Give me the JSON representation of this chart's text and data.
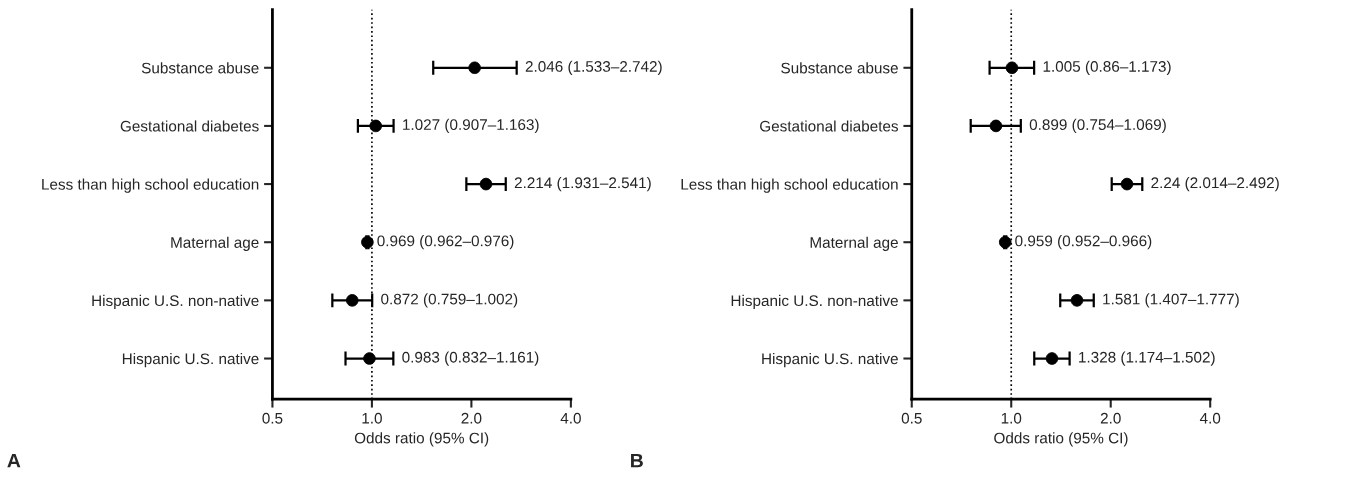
{
  "chart_data": [
    {
      "type": "scatter",
      "orientation": "horizontal",
      "log": "x",
      "xlabel": "Odds ratio (95% CI)",
      "annotations": [
        "A"
      ],
      "categories": [
        "Substance abuse",
        "Gestational diabetes",
        "Less than high school education",
        "Maternal age",
        "Hispanic U.S. non-native",
        "Hispanic U.S. native"
      ],
      "series": [
        {
          "color": "#000000",
          "values": [
            2.046,
            1.027,
            2.214,
            0.969,
            0.872,
            0.983
          ],
          "errors": [
            [
              1.533,
              2.742
            ],
            [
              0.907,
              1.163
            ],
            [
              1.931,
              2.541
            ],
            [
              0.962,
              0.976
            ],
            [
              0.759,
              1.002
            ],
            [
              0.832,
              1.161
            ]
          ],
          "value_labels": [
            "2.046 (1.533–2.742)",
            "1.027 (0.907–1.163)",
            "2.214 (1.931–2.541)",
            "0.969 (0.962–0.976)",
            "0.872 (0.759–1.002)",
            "0.983 (0.832–1.161)"
          ]
        }
      ],
      "xlim": [
        0.5,
        4.0
      ],
      "xticks": [
        0.5,
        {
          "value": 1.0,
          "label": "1.0"
        },
        {
          "value": 2.0,
          "label": "2.0"
        },
        {
          "value": 4.0,
          "label": "4.0"
        }
      ],
      "ref_lines": [
        {
          "axis": "x",
          "value": 1.0,
          "line_style": "dotted",
          "color": "#000000"
        }
      ],
      "marker": "circle",
      "grid": false,
      "legend": false
    },
    {
      "type": "scatter",
      "orientation": "horizontal",
      "log": "x",
      "xlabel": "Odds ratio (95% CI)",
      "annotations": [
        "B"
      ],
      "categories": [
        "Substance abuse",
        "Gestational diabetes",
        "Less than high school education",
        "Maternal age",
        "Hispanic U.S. non-native",
        "Hispanic U.S. native"
      ],
      "series": [
        {
          "color": "#000000",
          "values": [
            1.005,
            0.899,
            2.24,
            0.959,
            1.581,
            1.328
          ],
          "errors": [
            [
              0.86,
              1.173
            ],
            [
              0.754,
              1.069
            ],
            [
              2.014,
              2.492
            ],
            [
              0.952,
              0.966
            ],
            [
              1.407,
              1.777
            ],
            [
              1.174,
              1.502
            ]
          ],
          "value_labels": [
            "1.005 (0.86–1.173)",
            "0.899 (0.754–1.069)",
            "2.24 (2.014–2.492)",
            "0.959 (0.952–0.966)",
            "1.581 (1.407–1.777)",
            "1.328 (1.174–1.502)"
          ]
        }
      ],
      "xlim": [
        0.5,
        4.0
      ],
      "xticks": [
        0.5,
        {
          "value": 1.0,
          "label": "1.0"
        },
        {
          "value": 2.0,
          "label": "2.0"
        },
        {
          "value": 4.0,
          "label": "4.0"
        }
      ],
      "ref_lines": [
        {
          "axis": "x",
          "value": 1.0,
          "line_style": "dotted",
          "color": "#000000"
        }
      ],
      "marker": "circle",
      "grid": false,
      "legend": false
    }
  ]
}
